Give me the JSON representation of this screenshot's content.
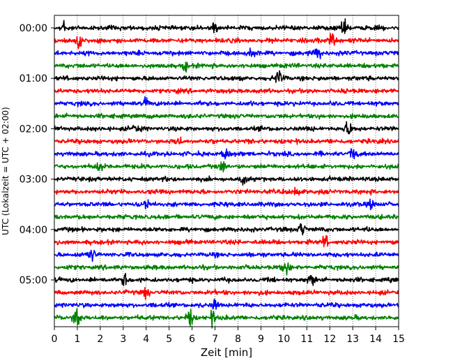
{
  "chart_data": {
    "type": "line",
    "xlabel": "Zeit  [min]",
    "ylabel": "UTC (Lokalzeit = UTC + 02:00)",
    "xlim": [
      0,
      15
    ],
    "x_ticks": [
      "0",
      "1",
      "2",
      "3",
      "4",
      "5",
      "6",
      "7",
      "8",
      "9",
      "10",
      "11",
      "12",
      "13",
      "14",
      "15"
    ],
    "y_ticks": [
      "00:00",
      "01:00",
      "02:00",
      "03:00",
      "04:00",
      "05:00"
    ],
    "trace_interval_min": 15,
    "trace_count": 24,
    "trace_colors": [
      "#000000",
      "#ff0000",
      "#0000ff",
      "#008000"
    ],
    "grid": "vertical dotted lines at each minute",
    "events": [
      {
        "trace": 0,
        "x": 0.4,
        "amp": 1.6
      },
      {
        "trace": 0,
        "x": 12.6,
        "amp": 2.0
      },
      {
        "trace": 0,
        "x": 7.0,
        "amp": 1.2
      },
      {
        "trace": 1,
        "x": 1.1,
        "amp": 2.0
      },
      {
        "trace": 1,
        "x": 12.1,
        "amp": 1.8
      },
      {
        "trace": 2,
        "x": 11.5,
        "amp": 1.8
      },
      {
        "trace": 2,
        "x": 8.6,
        "amp": 1.4
      },
      {
        "trace": 3,
        "x": 5.7,
        "amp": 1.2
      },
      {
        "trace": 4,
        "x": 9.8,
        "amp": 2.2
      },
      {
        "trace": 6,
        "x": 4.0,
        "amp": 1.1
      },
      {
        "trace": 8,
        "x": 12.8,
        "amp": 2.0
      },
      {
        "trace": 8,
        "x": 3.5,
        "amp": 1.0
      },
      {
        "trace": 9,
        "x": 5.4,
        "amp": 1.3
      },
      {
        "trace": 10,
        "x": 7.5,
        "amp": 1.4
      },
      {
        "trace": 10,
        "x": 13.0,
        "amp": 1.6
      },
      {
        "trace": 11,
        "x": 2.0,
        "amp": 1.5
      },
      {
        "trace": 11,
        "x": 7.3,
        "amp": 1.2
      },
      {
        "trace": 12,
        "x": 8.2,
        "amp": 1.3
      },
      {
        "trace": 13,
        "x": 10.5,
        "amp": 1.3
      },
      {
        "trace": 14,
        "x": 4.0,
        "amp": 1.3
      },
      {
        "trace": 14,
        "x": 13.8,
        "amp": 1.3
      },
      {
        "trace": 16,
        "x": 10.8,
        "amp": 1.8
      },
      {
        "trace": 17,
        "x": 11.8,
        "amp": 1.4
      },
      {
        "trace": 18,
        "x": 1.6,
        "amp": 2.0
      },
      {
        "trace": 19,
        "x": 10.1,
        "amp": 1.8
      },
      {
        "trace": 20,
        "x": 3.1,
        "amp": 1.8
      },
      {
        "trace": 20,
        "x": 11.2,
        "amp": 1.5
      },
      {
        "trace": 21,
        "x": 4.0,
        "amp": 1.4
      },
      {
        "trace": 22,
        "x": 7.0,
        "amp": 1.2
      },
      {
        "trace": 23,
        "x": 1.0,
        "amp": 4.5
      },
      {
        "trace": 23,
        "x": 5.9,
        "amp": 2.0
      },
      {
        "trace": 23,
        "x": 6.9,
        "amp": 1.8
      }
    ]
  }
}
